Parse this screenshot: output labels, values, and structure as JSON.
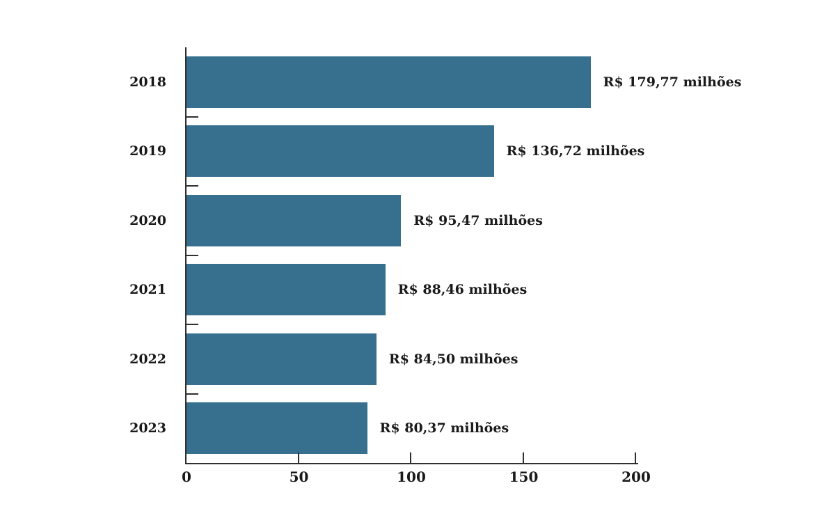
{
  "chart_data": {
    "type": "bar",
    "orientation": "horizontal",
    "title": "",
    "xlabel": "",
    "ylabel": "",
    "categories": [
      "2018",
      "2019",
      "2020",
      "2021",
      "2022",
      "2023"
    ],
    "values": [
      179.77,
      136.72,
      95.47,
      88.46,
      84.5,
      80.37
    ],
    "value_labels": [
      "R$ 179,77 milhões",
      "R$ 136,72 milhões",
      "R$ 95,47 milhões",
      "R$ 88,46 milhões",
      "R$ 84,50 milhões",
      "R$ 80,37 milhões"
    ],
    "xlim": [
      0,
      200
    ],
    "x_ticks": [
      0,
      50,
      100,
      150,
      200
    ],
    "x_tick_labels": [
      "0",
      "50",
      "100",
      "150",
      "200"
    ],
    "grid": false,
    "legend": false,
    "bar_color": "#36708e",
    "axis_color": "#2f2f2f",
    "text_color": "#1a1a1a"
  }
}
